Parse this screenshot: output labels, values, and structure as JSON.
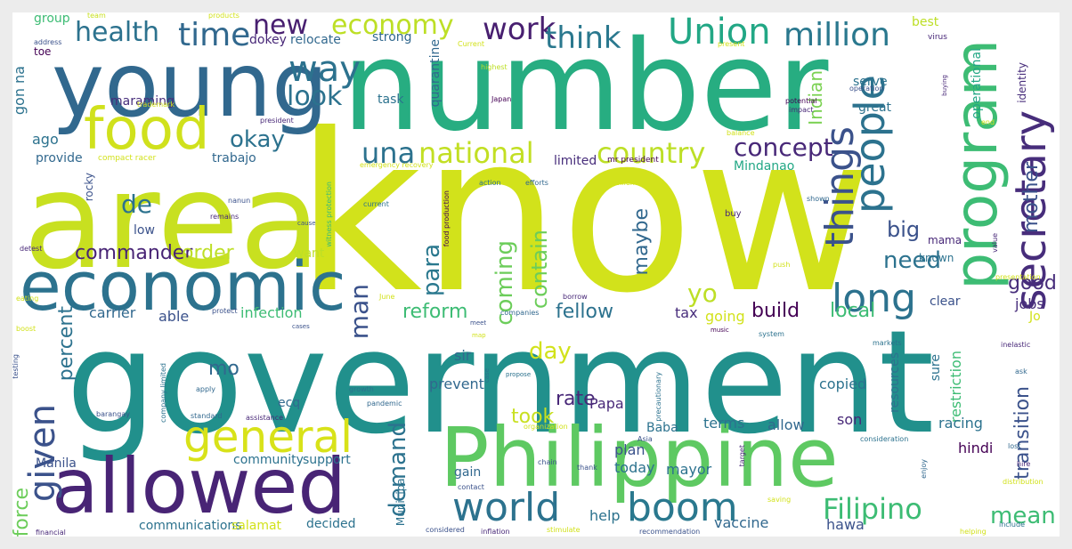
{
  "colors": {
    "frame": "#ececec",
    "canvas": "#ffffff",
    "palette": [
      "#440154",
      "#472d7b",
      "#3b528b",
      "#2c728e",
      "#21918c",
      "#28ae80",
      "#5ec962",
      "#addc30",
      "#d7e219"
    ]
  },
  "words": [
    {
      "text": "know",
      "color": "#d2e21b"
    },
    {
      "text": "government",
      "color": "#21908c"
    },
    {
      "text": "number",
      "color": "#27ad81"
    },
    {
      "text": "area",
      "color": "#c8e020"
    },
    {
      "text": "Philippine",
      "color": "#5ec962"
    },
    {
      "text": "young",
      "color": "#31688e"
    },
    {
      "text": "economic",
      "color": "#2c728e"
    },
    {
      "text": "allowed",
      "color": "#482475"
    },
    {
      "text": "program",
      "color": "#3dbc74"
    },
    {
      "text": "food",
      "color": "#d0e11c"
    },
    {
      "text": "secretary",
      "color": "#472d7b"
    },
    {
      "text": "general",
      "color": "#d8e219"
    },
    {
      "text": "boom",
      "color": "#2a788e"
    },
    {
      "text": "people",
      "color": "#2c728e"
    },
    {
      "text": "world",
      "color": "#2c728e"
    },
    {
      "text": "long",
      "color": "#2c728e"
    },
    {
      "text": "things",
      "color": "#3b528b"
    },
    {
      "text": "given",
      "color": "#3b528b"
    },
    {
      "text": "Union",
      "color": "#22a785"
    },
    {
      "text": "million",
      "color": "#2a788e"
    },
    {
      "text": "national",
      "color": "#c2df23"
    },
    {
      "text": "country",
      "color": "#bddf26"
    },
    {
      "text": "una",
      "color": "#2c728e"
    },
    {
      "text": "concept",
      "color": "#482878"
    },
    {
      "text": "way",
      "color": "#2c728e"
    },
    {
      "text": "health",
      "color": "#2c728e"
    },
    {
      "text": "time",
      "color": "#31688e"
    },
    {
      "text": "new",
      "color": "#481f70"
    },
    {
      "text": "economy",
      "color": "#bddf26"
    },
    {
      "text": "work",
      "color": "#481f70"
    },
    {
      "text": "think",
      "color": "#2a788e"
    },
    {
      "text": "Filipino",
      "color": "#3dbc74"
    },
    {
      "text": "okay",
      "color": "#2c728e"
    },
    {
      "text": "look",
      "color": "#2c728e"
    },
    {
      "text": "de",
      "color": "#2c728e"
    },
    {
      "text": "commander",
      "color": "#482475"
    },
    {
      "text": "order",
      "color": "#bddf26"
    },
    {
      "text": "man",
      "color": "#3b528b"
    },
    {
      "text": "para",
      "color": "#2a788e"
    },
    {
      "text": "coming",
      "color": "#6ccd5a"
    },
    {
      "text": "contain",
      "color": "#6ccd5a"
    },
    {
      "text": "need",
      "color": "#2c728e"
    },
    {
      "text": "big",
      "color": "#3b528b"
    },
    {
      "text": "yo",
      "color": "#bddf26"
    },
    {
      "text": "mother",
      "color": "#3b528b"
    },
    {
      "text": "Indian",
      "color": "#7ad151"
    },
    {
      "text": "maybe",
      "color": "#31688e"
    },
    {
      "text": "reform",
      "color": "#3dbc74"
    },
    {
      "text": "fellow",
      "color": "#2c728e"
    },
    {
      "text": "build",
      "color": "#440154"
    },
    {
      "text": "local",
      "color": "#3dbc74"
    },
    {
      "text": "good",
      "color": "#472d7b"
    },
    {
      "text": "day",
      "color": "#d2e21b"
    },
    {
      "text": "rate",
      "color": "#482878"
    },
    {
      "text": "took",
      "color": "#c8e020"
    },
    {
      "text": "demand",
      "color": "#2c728e"
    },
    {
      "text": "mean",
      "color": "#3dbc74"
    },
    {
      "text": "transition",
      "color": "#3b528b"
    },
    {
      "text": "percent",
      "color": "#2c728e"
    },
    {
      "text": "mo",
      "color": "#31688e"
    },
    {
      "text": "force",
      "color": "#6ccd5a"
    },
    {
      "text": "infection",
      "color": "#3dbc74"
    },
    {
      "text": "carrier",
      "color": "#31688e"
    },
    {
      "text": "able",
      "color": "#3b528b"
    },
    {
      "text": "tax",
      "color": "#472d7b"
    },
    {
      "text": "going",
      "color": "#d2e21b"
    },
    {
      "text": "restriction",
      "color": "#3dbc74"
    },
    {
      "text": "jobs",
      "color": "#472d7b"
    },
    {
      "text": "ago",
      "color": "#2c728e"
    },
    {
      "text": "gon na",
      "color": "#2c728e"
    },
    {
      "text": "provide",
      "color": "#31688e"
    },
    {
      "text": "rocky",
      "color": "#3b528b"
    },
    {
      "text": "trabajo",
      "color": "#31688e"
    },
    {
      "text": "limited",
      "color": "#472d7b"
    },
    {
      "text": "Mindanao",
      "color": "#22a785"
    },
    {
      "text": "maraming",
      "color": "#472d7b"
    },
    {
      "text": "task",
      "color": "#2c728e"
    },
    {
      "text": "strong",
      "color": "#31688e"
    },
    {
      "text": "quarantine",
      "color": "#31688e"
    },
    {
      "text": "relocate",
      "color": "#31688e"
    },
    {
      "text": "dokey",
      "color": "#482878"
    },
    {
      "text": "toe",
      "color": "#440154"
    },
    {
      "text": "group",
      "color": "#3dbc74"
    },
    {
      "text": "serve",
      "color": "#2c728e"
    },
    {
      "text": "operational",
      "color": "#22a785"
    },
    {
      "text": "identity",
      "color": "#472d7b"
    },
    {
      "text": "best",
      "color": "#bddf26"
    },
    {
      "text": "great",
      "color": "#2c728e"
    },
    {
      "text": "low",
      "color": "#3b528b"
    },
    {
      "text": "want",
      "color": "#bddf26"
    },
    {
      "text": "sir",
      "color": "#31688e"
    },
    {
      "text": "prevent",
      "color": "#31688e"
    },
    {
      "text": "Papa",
      "color": "#482878"
    },
    {
      "text": "copied",
      "color": "#2c728e"
    },
    {
      "text": "resources",
      "color": "#2c728e"
    },
    {
      "text": "sure",
      "color": "#2c728e"
    },
    {
      "text": "clear",
      "color": "#3b528b"
    },
    {
      "text": "ecq",
      "color": "#31688e"
    },
    {
      "text": "Baba",
      "color": "#2c728e"
    },
    {
      "text": "terms",
      "color": "#2c728e"
    },
    {
      "text": "allow",
      "color": "#31688e"
    },
    {
      "text": "son",
      "color": "#482878"
    },
    {
      "text": "racing",
      "color": "#2c728e"
    },
    {
      "text": "hindi",
      "color": "#440154"
    },
    {
      "text": "plan",
      "color": "#3b528b"
    },
    {
      "text": "today",
      "color": "#2c728e"
    },
    {
      "text": "mayor",
      "color": "#2c728e"
    },
    {
      "text": "gain",
      "color": "#31688e"
    },
    {
      "text": "help",
      "color": "#2c728e"
    },
    {
      "text": "vaccine",
      "color": "#31688e"
    },
    {
      "text": "hawa",
      "color": "#3b528b"
    },
    {
      "text": "communications",
      "color": "#2c728e"
    },
    {
      "text": "salamat",
      "color": "#d2e21b"
    },
    {
      "text": "decided",
      "color": "#2c728e"
    },
    {
      "text": "community",
      "color": "#2c728e"
    },
    {
      "text": "support",
      "color": "#2c728e"
    },
    {
      "text": "Manila",
      "color": "#3b528b"
    },
    {
      "text": "Municipal",
      "color": "#2c728e"
    },
    {
      "text": "Jo",
      "color": "#d2e21b"
    },
    {
      "text": "mama",
      "color": "#482878"
    },
    {
      "text": "known",
      "color": "#2c728e"
    },
    {
      "text": "buy",
      "color": "#482878"
    },
    {
      "text": "team",
      "color": "#c8e020"
    },
    {
      "text": "products",
      "color": "#d2e21b"
    },
    {
      "text": "virus",
      "color": "#482878"
    },
    {
      "text": "address",
      "color": "#3b528b"
    },
    {
      "text": "current",
      "color": "#2c728e"
    },
    {
      "text": "highest",
      "color": "#bddf26"
    },
    {
      "text": "Japan",
      "color": "#440154"
    },
    {
      "text": "potential",
      "color": "#440154"
    },
    {
      "text": "impact",
      "color": "#482878"
    },
    {
      "text": "operation",
      "color": "#3b528b"
    },
    {
      "text": "president",
      "color": "#482878"
    },
    {
      "text": "compact racer",
      "color": "#d2e21b"
    },
    {
      "text": "mr president",
      "color": "#440154"
    },
    {
      "text": "action",
      "color": "#2c728e"
    },
    {
      "text": "efforts",
      "color": "#31688e"
    },
    {
      "text": "resilient",
      "color": "#d2e21b"
    },
    {
      "text": "balance",
      "color": "#d2e21b"
    },
    {
      "text": "witness protection",
      "color": "#3dbc74"
    },
    {
      "text": "nanun",
      "color": "#3b528b"
    },
    {
      "text": "remains",
      "color": "#482878"
    },
    {
      "text": "shown",
      "color": "#31688e"
    },
    {
      "text": "value",
      "color": "#482878"
    },
    {
      "text": "push",
      "color": "#d2e21b"
    },
    {
      "text": "music",
      "color": "#440154"
    },
    {
      "text": "borrow",
      "color": "#482878"
    },
    {
      "text": "companies",
      "color": "#31688e"
    },
    {
      "text": "food production",
      "color": "#440154"
    },
    {
      "text": "June",
      "color": "#d2e21b"
    },
    {
      "text": "presentation",
      "color": "#d2e21b"
    },
    {
      "text": "markets",
      "color": "#2c728e"
    },
    {
      "text": "system",
      "color": "#2c728e"
    },
    {
      "text": "inelastic",
      "color": "#482878"
    },
    {
      "text": "protect",
      "color": "#3b528b"
    },
    {
      "text": "eating",
      "color": "#d2e21b"
    },
    {
      "text": "boost",
      "color": "#d2e21b"
    },
    {
      "text": "testing",
      "color": "#3b528b"
    },
    {
      "text": "detest",
      "color": "#482878"
    },
    {
      "text": "growth",
      "color": "#2c728e"
    },
    {
      "text": "pandemic",
      "color": "#31688e"
    },
    {
      "text": "standard",
      "color": "#31688e"
    },
    {
      "text": "assistance",
      "color": "#482878"
    },
    {
      "text": "company limited",
      "color": "#2c728e"
    },
    {
      "text": "barangay",
      "color": "#3b528b"
    },
    {
      "text": "apply",
      "color": "#31688e"
    },
    {
      "text": "organization",
      "color": "#d2e21b"
    },
    {
      "text": "Asia",
      "color": "#3b528b"
    },
    {
      "text": "precautionary",
      "color": "#2c728e"
    },
    {
      "text": "consideration",
      "color": "#2c728e"
    },
    {
      "text": "chain",
      "color": "#3b528b"
    },
    {
      "text": "thank",
      "color": "#3b528b"
    },
    {
      "text": "target",
      "color": "#482878"
    },
    {
      "text": "enjoy",
      "color": "#31688e"
    },
    {
      "text": "hire",
      "color": "#482878"
    },
    {
      "text": "lost",
      "color": "#31688e"
    },
    {
      "text": "ask",
      "color": "#31688e"
    },
    {
      "text": "contact",
      "color": "#3b528b"
    },
    {
      "text": "saving",
      "color": "#d2e21b"
    },
    {
      "text": "distribution",
      "color": "#d2e21b"
    },
    {
      "text": "financial",
      "color": "#482878"
    },
    {
      "text": "considered",
      "color": "#3b528b"
    },
    {
      "text": "inflation",
      "color": "#482878"
    },
    {
      "text": "stimulate",
      "color": "#d2e21b"
    },
    {
      "text": "recommendation",
      "color": "#3b528b"
    },
    {
      "text": "helping",
      "color": "#d2e21b"
    },
    {
      "text": "include",
      "color": "#2c728e"
    },
    {
      "text": "Current",
      "color": "#d2e21b"
    },
    {
      "text": "present",
      "color": "#d2e21b"
    },
    {
      "text": "trademark",
      "color": "#d2e21b"
    },
    {
      "text": "emergency recovery",
      "color": "#d2e21b"
    },
    {
      "text": "end",
      "color": "#d2e21b"
    },
    {
      "text": "propose",
      "color": "#2c728e"
    },
    {
      "text": "case",
      "color": "#2c728e"
    },
    {
      "text": "cases",
      "color": "#3b528b"
    },
    {
      "text": "cause",
      "color": "#3b528b"
    },
    {
      "text": "meet",
      "color": "#3b528b"
    },
    {
      "text": "map",
      "color": "#d2e21b"
    },
    {
      "text": "buying",
      "color": "#482878"
    }
  ]
}
